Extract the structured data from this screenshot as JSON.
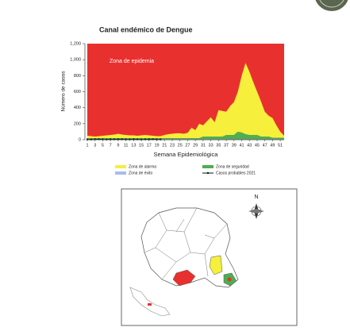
{
  "chart_data": {
    "type": "stacked_area",
    "title": "Canal endémico de Dengue",
    "annotation": "Zona de epidemia",
    "plot_background": "#e8312f",
    "xlabel": "Semana Epidemiológica",
    "ylabel": "Número de casos",
    "x": [
      1,
      2,
      3,
      4,
      5,
      6,
      7,
      8,
      9,
      10,
      11,
      12,
      13,
      14,
      15,
      16,
      17,
      18,
      19,
      20,
      21,
      22,
      23,
      24,
      25,
      26,
      27,
      28,
      29,
      30,
      31,
      32,
      33,
      34,
      35,
      36,
      37,
      38,
      39,
      40,
      41,
      42,
      43,
      44,
      45,
      46,
      47,
      48,
      49,
      50,
      51,
      52
    ],
    "xlim": [
      1,
      52
    ],
    "xticks": [
      1,
      3,
      5,
      7,
      9,
      11,
      13,
      15,
      17,
      19,
      21,
      23,
      25,
      27,
      29,
      31,
      33,
      35,
      37,
      39,
      41,
      43,
      45,
      47,
      49,
      51
    ],
    "ylim": [
      0,
      1200
    ],
    "yticks": [
      0,
      200,
      400,
      600,
      800,
      {
        "value": 1000,
        "label": "1,000"
      },
      {
        "value": 1200,
        "label": "1,200"
      }
    ],
    "series": [
      {
        "name": "Zona de alarma",
        "color": "#f6ef3b",
        "kind": "area",
        "values": [
          30,
          25,
          20,
          25,
          30,
          35,
          40,
          45,
          55,
          45,
          40,
          35,
          35,
          30,
          35,
          40,
          35,
          30,
          25,
          25,
          40,
          50,
          55,
          60,
          60,
          55,
          65,
          130,
          100,
          180,
          140,
          190,
          240,
          180,
          330,
          320,
          290,
          360,
          410,
          500,
          710,
          890,
          790,
          660,
          540,
          440,
          310,
          260,
          245,
          155,
          75,
          25
        ]
      },
      {
        "name": "Zona de seguridad",
        "color": "#4caf50",
        "kind": "area",
        "values": [
          12,
          12,
          12,
          12,
          12,
          12,
          12,
          12,
          12,
          12,
          12,
          12,
          12,
          12,
          12,
          12,
          12,
          12,
          12,
          12,
          12,
          12,
          12,
          12,
          12,
          12,
          12,
          12,
          12,
          12,
          32,
          32,
          32,
          32,
          32,
          32,
          52,
          52,
          52,
          92,
          82,
          62,
          52,
          52,
          52,
          32,
          32,
          32,
          17,
          17,
          17,
          17
        ]
      },
      {
        "name": "Zona de éxito",
        "color": "#a9bde8",
        "kind": "area",
        "values": [
          8,
          8,
          8,
          8,
          8,
          8,
          8,
          8,
          8,
          8,
          8,
          8,
          8,
          8,
          8,
          8,
          8,
          8,
          8,
          8,
          8,
          8,
          8,
          8,
          8,
          8,
          8,
          8,
          8,
          8,
          8,
          8,
          8,
          8,
          8,
          8,
          8,
          8,
          8,
          8,
          8,
          8,
          8,
          8,
          8,
          8,
          8,
          8,
          8,
          8,
          8,
          8
        ]
      },
      {
        "name": "Casos probables 2021",
        "color": "#111111",
        "kind": "line",
        "values": [
          4,
          3,
          5,
          6,
          4,
          3,
          5,
          4,
          6,
          5,
          4,
          3,
          5,
          4,
          3,
          4,
          5,
          6,
          4,
          3,
          null,
          null,
          null,
          null,
          null,
          null,
          null,
          null,
          null,
          null,
          null,
          null,
          null,
          null,
          null,
          null,
          null,
          null,
          null,
          null,
          null,
          null,
          null,
          null,
          null,
          null,
          null,
          null,
          null,
          null,
          null,
          null
        ]
      }
    ]
  },
  "map": {
    "north_label": "N"
  }
}
